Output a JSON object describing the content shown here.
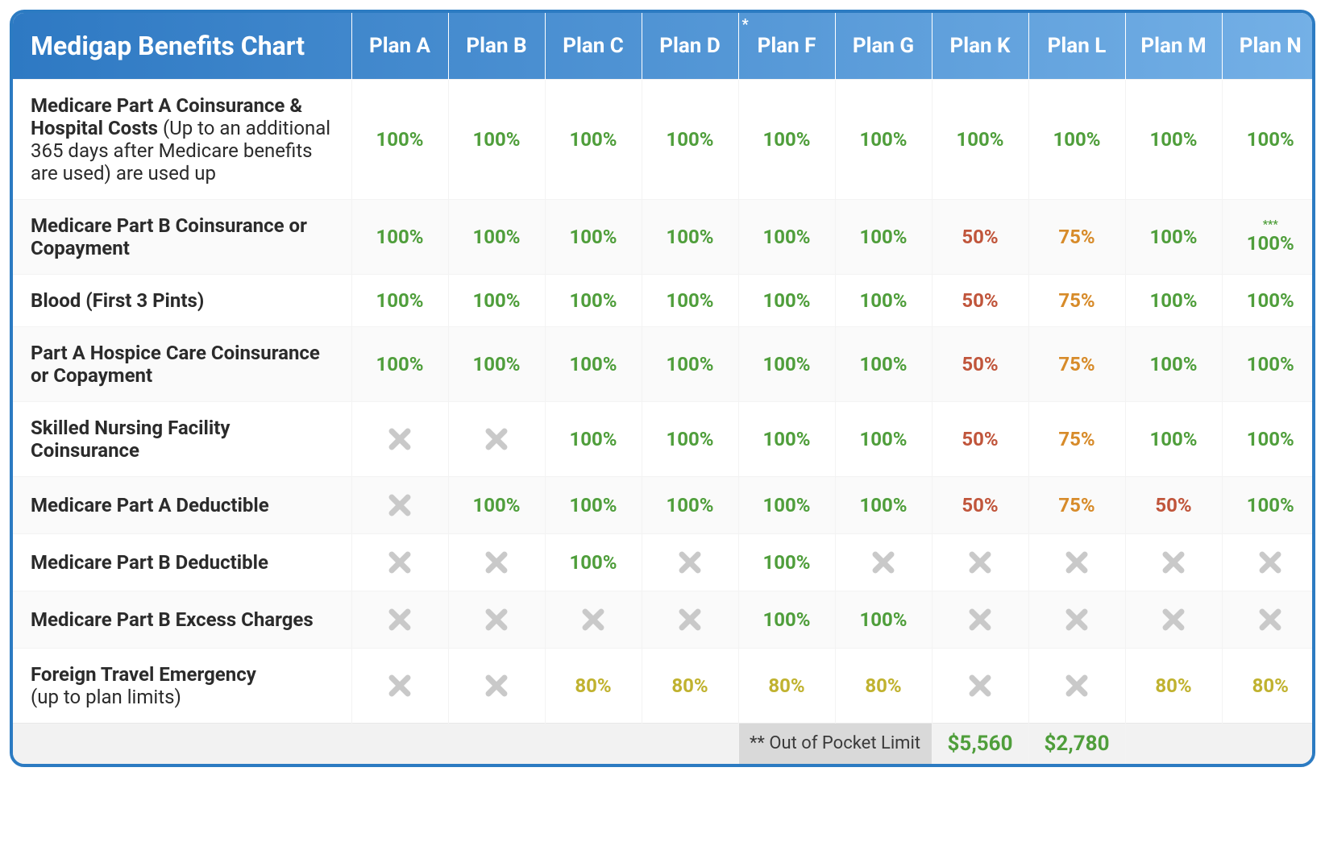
{
  "title": "Medigap Benefits Chart",
  "header_gradient": {
    "from": "#2e79c3",
    "to": "#74b0e6"
  },
  "colors": {
    "green": "#4f9e3b",
    "red": "#c0553b",
    "orange": "#d78b2a",
    "olive": "#c0b22f",
    "gray_x": "#c9c9c9",
    "text": "#2b2b2b",
    "border": "#2c7bc2"
  },
  "columns": [
    {
      "label": "Plan A",
      "asterisk": ""
    },
    {
      "label": "Plan B",
      "asterisk": ""
    },
    {
      "label": "Plan C",
      "asterisk": ""
    },
    {
      "label": "Plan D",
      "asterisk": ""
    },
    {
      "label": "Plan F",
      "asterisk": "*"
    },
    {
      "label": "Plan G",
      "asterisk": ""
    },
    {
      "label": "Plan K",
      "asterisk": ""
    },
    {
      "label": "Plan L",
      "asterisk": ""
    },
    {
      "label": "Plan M",
      "asterisk": ""
    },
    {
      "label": "Plan N",
      "asterisk": ""
    }
  ],
  "rows": [
    {
      "label_bold": "Medicare Part A Coinsurance & Hospital Costs",
      "label_rest": " (Up to an additional 365 days after Medicare benefits are used) are used up",
      "cells": [
        {
          "text": "100%",
          "color": "green"
        },
        {
          "text": "100%",
          "color": "green"
        },
        {
          "text": "100%",
          "color": "green"
        },
        {
          "text": "100%",
          "color": "green"
        },
        {
          "text": "100%",
          "color": "green"
        },
        {
          "text": "100%",
          "color": "green"
        },
        {
          "text": "100%",
          "color": "green"
        },
        {
          "text": "100%",
          "color": "green"
        },
        {
          "text": "100%",
          "color": "green"
        },
        {
          "text": "100%",
          "color": "green"
        }
      ]
    },
    {
      "label_bold": "Medicare Part B Coinsurance or Copayment",
      "label_rest": "",
      "cells": [
        {
          "text": "100%",
          "color": "green"
        },
        {
          "text": "100%",
          "color": "green"
        },
        {
          "text": "100%",
          "color": "green"
        },
        {
          "text": "100%",
          "color": "green"
        },
        {
          "text": "100%",
          "color": "green"
        },
        {
          "text": "100%",
          "color": "green"
        },
        {
          "text": "50%",
          "color": "red"
        },
        {
          "text": "75%",
          "color": "orange"
        },
        {
          "text": "100%",
          "color": "green"
        },
        {
          "text": "100%",
          "color": "green",
          "note": "***"
        }
      ]
    },
    {
      "label_bold": "Blood (First 3 Pints)",
      "label_rest": "",
      "cells": [
        {
          "text": "100%",
          "color": "green"
        },
        {
          "text": "100%",
          "color": "green"
        },
        {
          "text": "100%",
          "color": "green"
        },
        {
          "text": "100%",
          "color": "green"
        },
        {
          "text": "100%",
          "color": "green"
        },
        {
          "text": "100%",
          "color": "green"
        },
        {
          "text": "50%",
          "color": "red"
        },
        {
          "text": "75%",
          "color": "orange"
        },
        {
          "text": "100%",
          "color": "green"
        },
        {
          "text": "100%",
          "color": "green"
        }
      ]
    },
    {
      "label_bold": "Part A Hospice Care Coinsurance or Copayment",
      "label_rest": "",
      "cells": [
        {
          "text": "100%",
          "color": "green"
        },
        {
          "text": "100%",
          "color": "green"
        },
        {
          "text": "100%",
          "color": "green"
        },
        {
          "text": "100%",
          "color": "green"
        },
        {
          "text": "100%",
          "color": "green"
        },
        {
          "text": "100%",
          "color": "green"
        },
        {
          "text": "50%",
          "color": "red"
        },
        {
          "text": "75%",
          "color": "orange"
        },
        {
          "text": "100%",
          "color": "green"
        },
        {
          "text": "100%",
          "color": "green"
        }
      ]
    },
    {
      "label_bold": "Skilled Nursing Facility Coinsurance",
      "label_rest": "",
      "cells": [
        {
          "text": "X",
          "color": "x"
        },
        {
          "text": "X",
          "color": "x"
        },
        {
          "text": "100%",
          "color": "green"
        },
        {
          "text": "100%",
          "color": "green"
        },
        {
          "text": "100%",
          "color": "green"
        },
        {
          "text": "100%",
          "color": "green"
        },
        {
          "text": "50%",
          "color": "red"
        },
        {
          "text": "75%",
          "color": "orange"
        },
        {
          "text": "100%",
          "color": "green"
        },
        {
          "text": "100%",
          "color": "green"
        }
      ]
    },
    {
      "label_bold": "Medicare Part A Deductible",
      "label_rest": "",
      "cells": [
        {
          "text": "X",
          "color": "x"
        },
        {
          "text": "100%",
          "color": "green"
        },
        {
          "text": "100%",
          "color": "green"
        },
        {
          "text": "100%",
          "color": "green"
        },
        {
          "text": "100%",
          "color": "green"
        },
        {
          "text": "100%",
          "color": "green"
        },
        {
          "text": "50%",
          "color": "red"
        },
        {
          "text": "75%",
          "color": "orange"
        },
        {
          "text": "50%",
          "color": "red"
        },
        {
          "text": "100%",
          "color": "green"
        }
      ]
    },
    {
      "label_bold": "Medicare Part B Deductible",
      "label_rest": "",
      "cells": [
        {
          "text": "X",
          "color": "x"
        },
        {
          "text": "X",
          "color": "x"
        },
        {
          "text": "100%",
          "color": "green"
        },
        {
          "text": "X",
          "color": "x"
        },
        {
          "text": "100%",
          "color": "green"
        },
        {
          "text": "X",
          "color": "x"
        },
        {
          "text": "X",
          "color": "x"
        },
        {
          "text": "X",
          "color": "x"
        },
        {
          "text": "X",
          "color": "x"
        },
        {
          "text": "X",
          "color": "x"
        }
      ]
    },
    {
      "label_bold": "Medicare Part B Excess Charges",
      "label_rest": "",
      "cells": [
        {
          "text": "X",
          "color": "x"
        },
        {
          "text": "X",
          "color": "x"
        },
        {
          "text": "X",
          "color": "x"
        },
        {
          "text": "X",
          "color": "x"
        },
        {
          "text": "100%",
          "color": "green"
        },
        {
          "text": "100%",
          "color": "green"
        },
        {
          "text": "X",
          "color": "x"
        },
        {
          "text": "X",
          "color": "x"
        },
        {
          "text": "X",
          "color": "x"
        },
        {
          "text": "X",
          "color": "x"
        }
      ]
    },
    {
      "label_bold": "Foreign Travel Emergency",
      "label_rest": " (up to plan limits)",
      "label_rest_newline": true,
      "cells": [
        {
          "text": "X",
          "color": "x"
        },
        {
          "text": "X",
          "color": "x"
        },
        {
          "text": "80%",
          "color": "olive"
        },
        {
          "text": "80%",
          "color": "olive"
        },
        {
          "text": "80%",
          "color": "olive"
        },
        {
          "text": "80%",
          "color": "olive"
        },
        {
          "text": "X",
          "color": "x"
        },
        {
          "text": "X",
          "color": "x"
        },
        {
          "text": "80%",
          "color": "olive"
        },
        {
          "text": "80%",
          "color": "olive"
        }
      ]
    }
  ],
  "footer": {
    "label": "**  Out of Pocket Limit",
    "values": {
      "Plan K": "$5,560",
      "Plan L": "$2,780"
    }
  }
}
